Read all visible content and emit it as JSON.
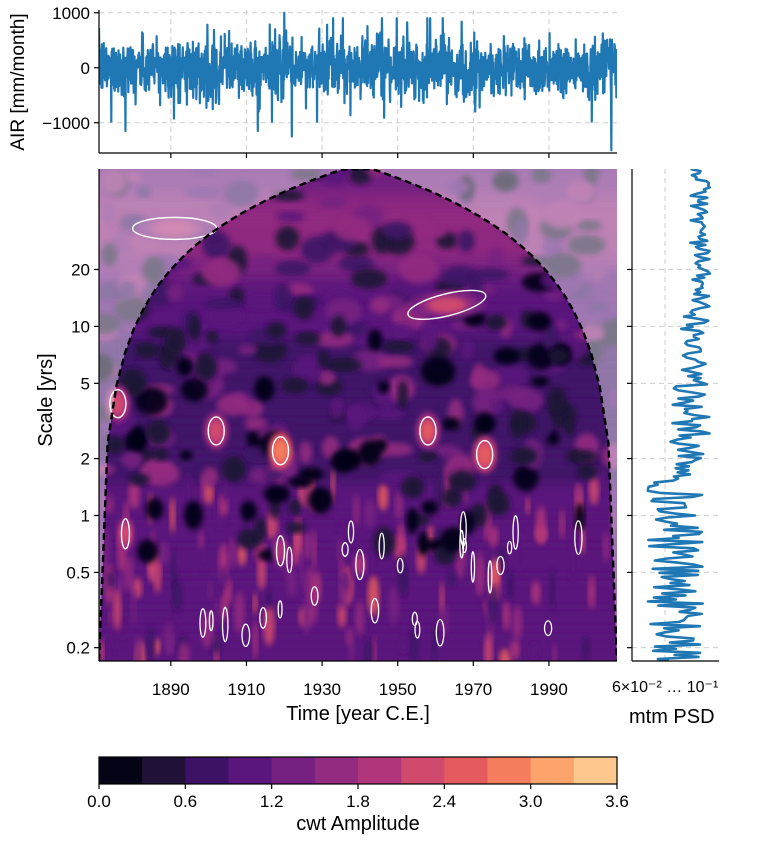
{
  "chart_data": [
    {
      "type": "line",
      "panel": "timeseries",
      "ylabel": "AIR [mm/month]",
      "y_ticks": [
        1000,
        0,
        -1000
      ],
      "y_tick_labels": [
        "1000",
        "0",
        "−1000"
      ],
      "ylim": [
        -1550,
        1050
      ],
      "xlim": [
        1871,
        2008
      ],
      "grid": true,
      "color": "#1f77b4",
      "series_summary": {
        "n_points": 1644,
        "typical_amplitude": 450,
        "max": 1000,
        "min": -1500
      },
      "notable_spikes": [
        {
          "x": 1878,
          "y": -1150
        },
        {
          "x": 1913,
          "y": -1150
        },
        {
          "x": 1920,
          "y": 1000
        },
        {
          "x": 1922,
          "y": -1250
        },
        {
          "x": 2006.5,
          "y": -1500
        }
      ]
    },
    {
      "type": "heatmap",
      "panel": "wavelet",
      "xlabel": "Time [year C.E.]",
      "ylabel": "Scale [yrs]",
      "x_ticks": [
        1890,
        1910,
        1930,
        1950,
        1970,
        1990
      ],
      "y_ticks": [
        20,
        10,
        5,
        2,
        1,
        0.5,
        0.2
      ],
      "y_tick_labels": [
        "20",
        "10",
        "5",
        "2",
        "1",
        "0.5",
        "0.2"
      ],
      "y_scale": "log",
      "xlim": [
        1871,
        2008
      ],
      "ylim": [
        0.17,
        68
      ],
      "cone_of_influence": {
        "style": "dashed",
        "color": "#000000",
        "peak_x": 1939.5
      },
      "significance_contours": {
        "color": "#ffffff"
      },
      "hotspots": [
        {
          "x": 1891,
          "scale": 33,
          "amp": 2.3
        },
        {
          "x": 1963,
          "scale": 13,
          "amp": 2.5
        },
        {
          "x": 1876,
          "scale": 3.9,
          "amp": 2.6
        },
        {
          "x": 1902,
          "scale": 2.8,
          "amp": 2.7
        },
        {
          "x": 1919,
          "scale": 2.2,
          "amp": 3.2
        },
        {
          "x": 1958,
          "scale": 2.8,
          "amp": 2.8
        },
        {
          "x": 1973,
          "scale": 2.1,
          "amp": 3.0
        },
        {
          "x": 1878,
          "scale": 0.8,
          "amp": 2.6
        },
        {
          "x": 1919,
          "scale": 0.65,
          "amp": 2.4
        },
        {
          "x": 1940,
          "scale": 0.55,
          "amp": 2.2
        }
      ]
    },
    {
      "type": "line",
      "panel": "psd",
      "xlabel": "mtm PSD",
      "x_scale": "log",
      "x_tick_label_text": "6×10⁻² ... 10⁻¹",
      "color": "#1f77b4",
      "grid": true,
      "shared_y_ticks": [
        20,
        10,
        5,
        2,
        1,
        0.5,
        0.2
      ]
    }
  ],
  "colorbar": {
    "label": "cwt Amplitude",
    "ticks": [
      0.0,
      0.6,
      1.2,
      1.8,
      2.4,
      3.0,
      3.6
    ],
    "tick_labels": [
      "0.0",
      "0.6",
      "1.2",
      "1.8",
      "2.4",
      "3.0",
      "3.6"
    ],
    "colors": [
      "#050417",
      "#1f1236",
      "#3d1266",
      "#5a167c",
      "#762181",
      "#932b80",
      "#b0357a",
      "#d04a6e",
      "#e45a5f",
      "#f37d5c",
      "#fca46b",
      "#fec78b",
      "#fde7a8"
    ]
  },
  "psd_tick_text": "6×10⁻² … 10⁻¹"
}
